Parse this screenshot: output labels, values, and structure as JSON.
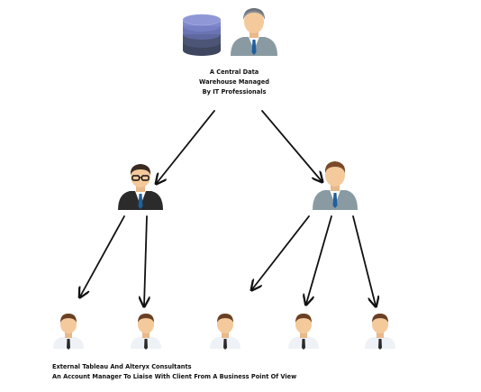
{
  "top_node": {
    "caption_lines": [
      "A Central Data",
      "Warehouse Managed",
      "By IT Professionals"
    ],
    "icons": [
      "database-icon",
      "it-professional-icon"
    ]
  },
  "middle_nodes": [
    {
      "icon": "consultant-glasses-icon"
    },
    {
      "icon": "account-manager-icon"
    }
  ],
  "bottom_nodes": [
    {
      "icon": "client-user-icon"
    },
    {
      "icon": "client-user-icon"
    },
    {
      "icon": "client-user-icon"
    },
    {
      "icon": "client-user-icon"
    },
    {
      "icon": "client-user-icon"
    }
  ],
  "legend": {
    "line1": "External Tableau And Alteryx Consultants",
    "line2": "An Account Manager To Liaise With Client From A Business Point Of View"
  },
  "colors": {
    "arrow": "#111111",
    "db_top": "#8f97d6",
    "db_body": "#3f4660",
    "suit_gray": "#8a9aa2",
    "suit_dark": "#2b2b2b",
    "skin": "#f4c99b",
    "hair_dark": "#3a2b22",
    "hair_brown": "#7a4a2a",
    "tie_blue": "#1f5f9e"
  }
}
